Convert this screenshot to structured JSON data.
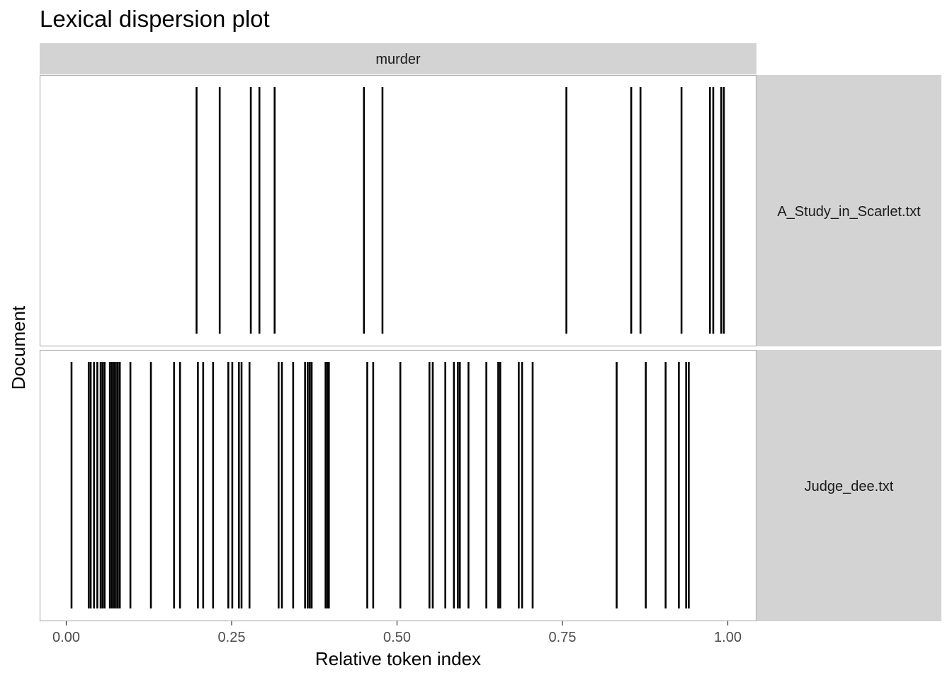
{
  "chart_data": {
    "type": "lexical-dispersion",
    "title": "Lexical dispersion plot",
    "xlabel": "Relative token index",
    "ylabel": "Document",
    "xlim": [
      -0.08,
      1.0
    ],
    "x_ticks": [
      {
        "value": 0.0,
        "label": "0.00"
      },
      {
        "value": 0.25,
        "label": "0.25"
      },
      {
        "value": 0.5,
        "label": "0.50"
      },
      {
        "value": 0.75,
        "label": "0.75"
      },
      {
        "value": 1.0,
        "label": "1.00"
      }
    ],
    "column_facet": "murder",
    "documents": [
      {
        "name": "A_Study_in_Scarlet.txt",
        "positions": [
          0.197,
          0.232,
          0.279,
          0.292,
          0.315,
          0.45,
          0.478,
          0.756,
          0.854,
          0.868,
          0.93,
          0.973,
          0.978,
          0.99,
          0.994
        ]
      },
      {
        "name": "Judge_dee.txt",
        "positions": [
          0.008,
          0.034,
          0.037,
          0.042,
          0.047,
          0.052,
          0.055,
          0.058,
          0.066,
          0.069,
          0.072,
          0.075,
          0.078,
          0.081,
          0.097,
          0.128,
          0.163,
          0.172,
          0.199,
          0.207,
          0.222,
          0.245,
          0.251,
          0.261,
          0.265,
          0.277,
          0.321,
          0.326,
          0.343,
          0.361,
          0.365,
          0.368,
          0.371,
          0.392,
          0.395,
          0.397,
          0.455,
          0.464,
          0.505,
          0.549,
          0.554,
          0.573,
          0.586,
          0.592,
          0.595,
          0.608,
          0.635,
          0.653,
          0.656,
          0.684,
          0.689,
          0.705,
          0.832,
          0.876,
          0.906,
          0.926,
          0.937,
          0.941
        ]
      }
    ]
  }
}
